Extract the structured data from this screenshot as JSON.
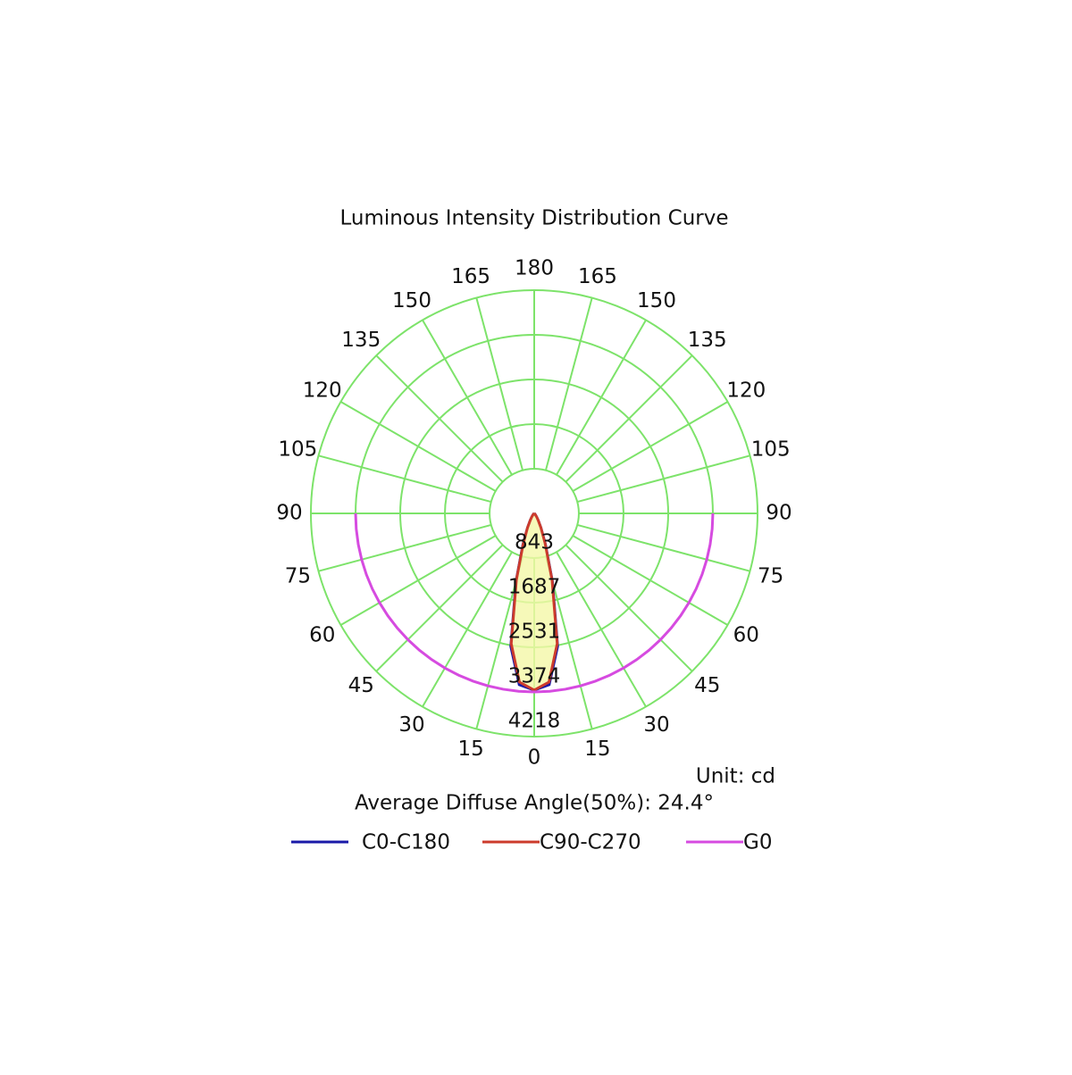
{
  "chart_data": {
    "type": "polar",
    "title": "Luminous Intensity Distribution Curve",
    "unit_label": "Unit: cd",
    "note": "Average Diffuse Angle(50%): 24.4°",
    "angles": [
      0,
      5,
      10,
      15,
      20,
      25,
      30,
      35,
      40,
      45,
      50,
      55,
      60,
      65,
      70,
      75,
      80,
      85,
      90
    ],
    "angle_ticks": [
      0,
      15,
      30,
      45,
      60,
      75,
      90,
      105,
      120,
      135,
      150,
      165,
      180
    ],
    "rlim": [
      0,
      4218
    ],
    "rticks": [
      843,
      1687,
      2531,
      3374,
      4218
    ],
    "grid_color": "#7de36a",
    "series": [
      {
        "name": "C0-C180",
        "color": "#1a1aa8",
        "values": [
          3340,
          3250,
          2550,
          1330,
          620,
          300,
          150,
          80,
          40,
          20,
          10,
          5,
          0,
          0,
          0,
          0,
          0,
          0,
          0
        ]
      },
      {
        "name": "C90-C270",
        "color": "#cc3b2c",
        "values": [
          3340,
          3200,
          2500,
          1300,
          600,
          300,
          150,
          80,
          40,
          20,
          10,
          5,
          0,
          0,
          0,
          0,
          0,
          0,
          0
        ]
      },
      {
        "name": "G0",
        "color": "#d64be0",
        "values": [
          3374,
          3374,
          3374,
          3374,
          3374,
          3374,
          3374,
          3374,
          3374,
          3374,
          3374,
          3374,
          3374,
          3374,
          3374,
          3374,
          3374,
          3374,
          3374
        ]
      }
    ]
  }
}
